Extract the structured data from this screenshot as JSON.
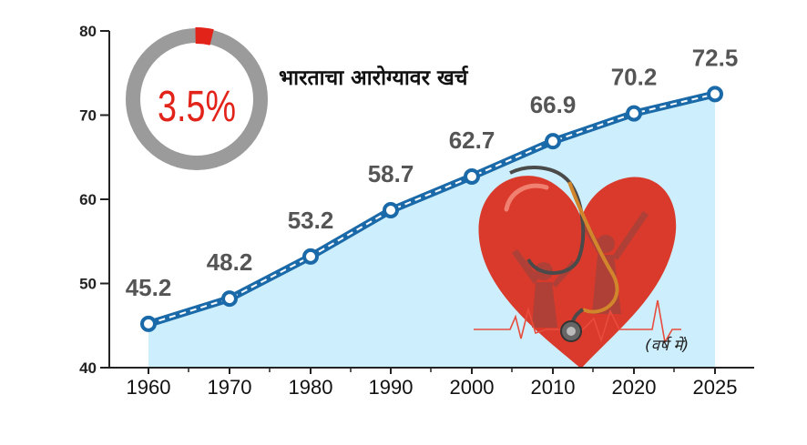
{
  "chart_data": {
    "type": "line",
    "title": "भारताचा आरोग्यावर खर्च",
    "unit_note": "(वर्ष में)",
    "categories": [
      "1960",
      "1970",
      "1980",
      "1990",
      "2000",
      "2010",
      "2020",
      "2025"
    ],
    "values": [
      45.2,
      48.2,
      53.2,
      58.7,
      62.7,
      66.9,
      70.2,
      72.5
    ],
    "value_labels": [
      "45.2",
      "48.2",
      "53.2",
      "58.7",
      "62.7",
      "66.9",
      "70.2",
      "72.5"
    ],
    "y_ticks": [
      "40",
      "50",
      "60",
      "70",
      "80"
    ],
    "ylim": [
      40,
      80
    ],
    "grid": false,
    "colors": {
      "line": "#1a69a8",
      "area": "#cdeefd",
      "accent": "#e2231a",
      "ring": "#9b9b9b"
    },
    "donut": {
      "label": "3.5%",
      "fraction": 0.035
    },
    "illustration": "heart-stethoscope-icon"
  }
}
